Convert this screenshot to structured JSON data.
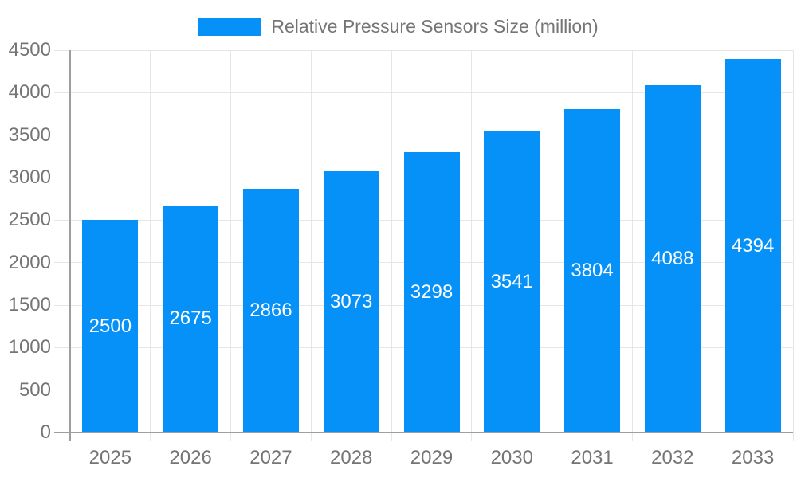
{
  "legend": {
    "label": "Relative Pressure Sensors Size (million)",
    "swatch_color": "#0591f8"
  },
  "chart_data": {
    "type": "bar",
    "title": "Relative Pressure Sensors Size (million)",
    "categories": [
      "2025",
      "2026",
      "2027",
      "2028",
      "2029",
      "2030",
      "2031",
      "2032",
      "2033"
    ],
    "values": [
      2500,
      2675,
      2866,
      3073,
      3298,
      3541,
      3804,
      4088,
      4394
    ],
    "xlabel": "",
    "ylabel": "",
    "ylim": [
      0,
      4500
    ],
    "ytick_step": 500,
    "grid": true,
    "legend_position": "top",
    "value_labels": "inside-center-white",
    "bar_color": "#0591f8",
    "value_label_color": "#ffffff",
    "axis_text_color": "#757575",
    "grid_color": "#e6e6e6",
    "axis_line_color": "#9e9e9e",
    "background_color": "#ffffff"
  }
}
